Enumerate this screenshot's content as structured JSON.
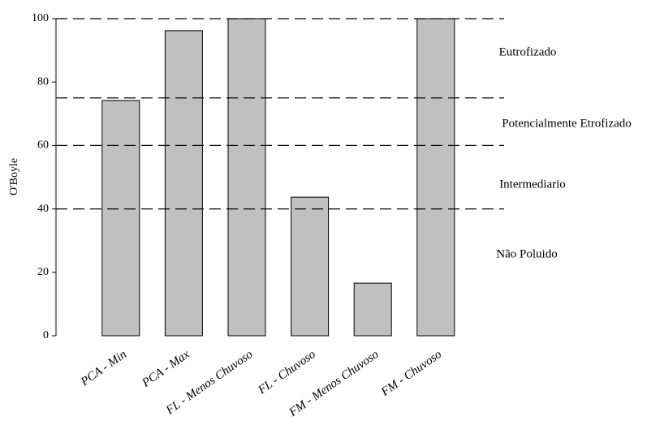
{
  "chart_data": {
    "type": "bar",
    "y_label": "O'Boyle",
    "categories": [
      "PCA - Min",
      "PCA - Max",
      "FL - Menos Chuvoso",
      "FL - Chuvoso",
      "FM - Menos Chuvoso",
      "FM - Chuvoso"
    ],
    "values": [
      74.2,
      96.2,
      100,
      43.7,
      16.6,
      100
    ],
    "color": "#c0c0c0",
    "ylim": [
      0,
      100
    ],
    "yticks": [
      0,
      20,
      40,
      60,
      80,
      100
    ],
    "thresholds": [
      100,
      75,
      60,
      40
    ],
    "annotations": [
      "Eutrofizado",
      "Potencialmente Etrofizado",
      "Intermediario",
      "Não Poluido"
    ]
  }
}
